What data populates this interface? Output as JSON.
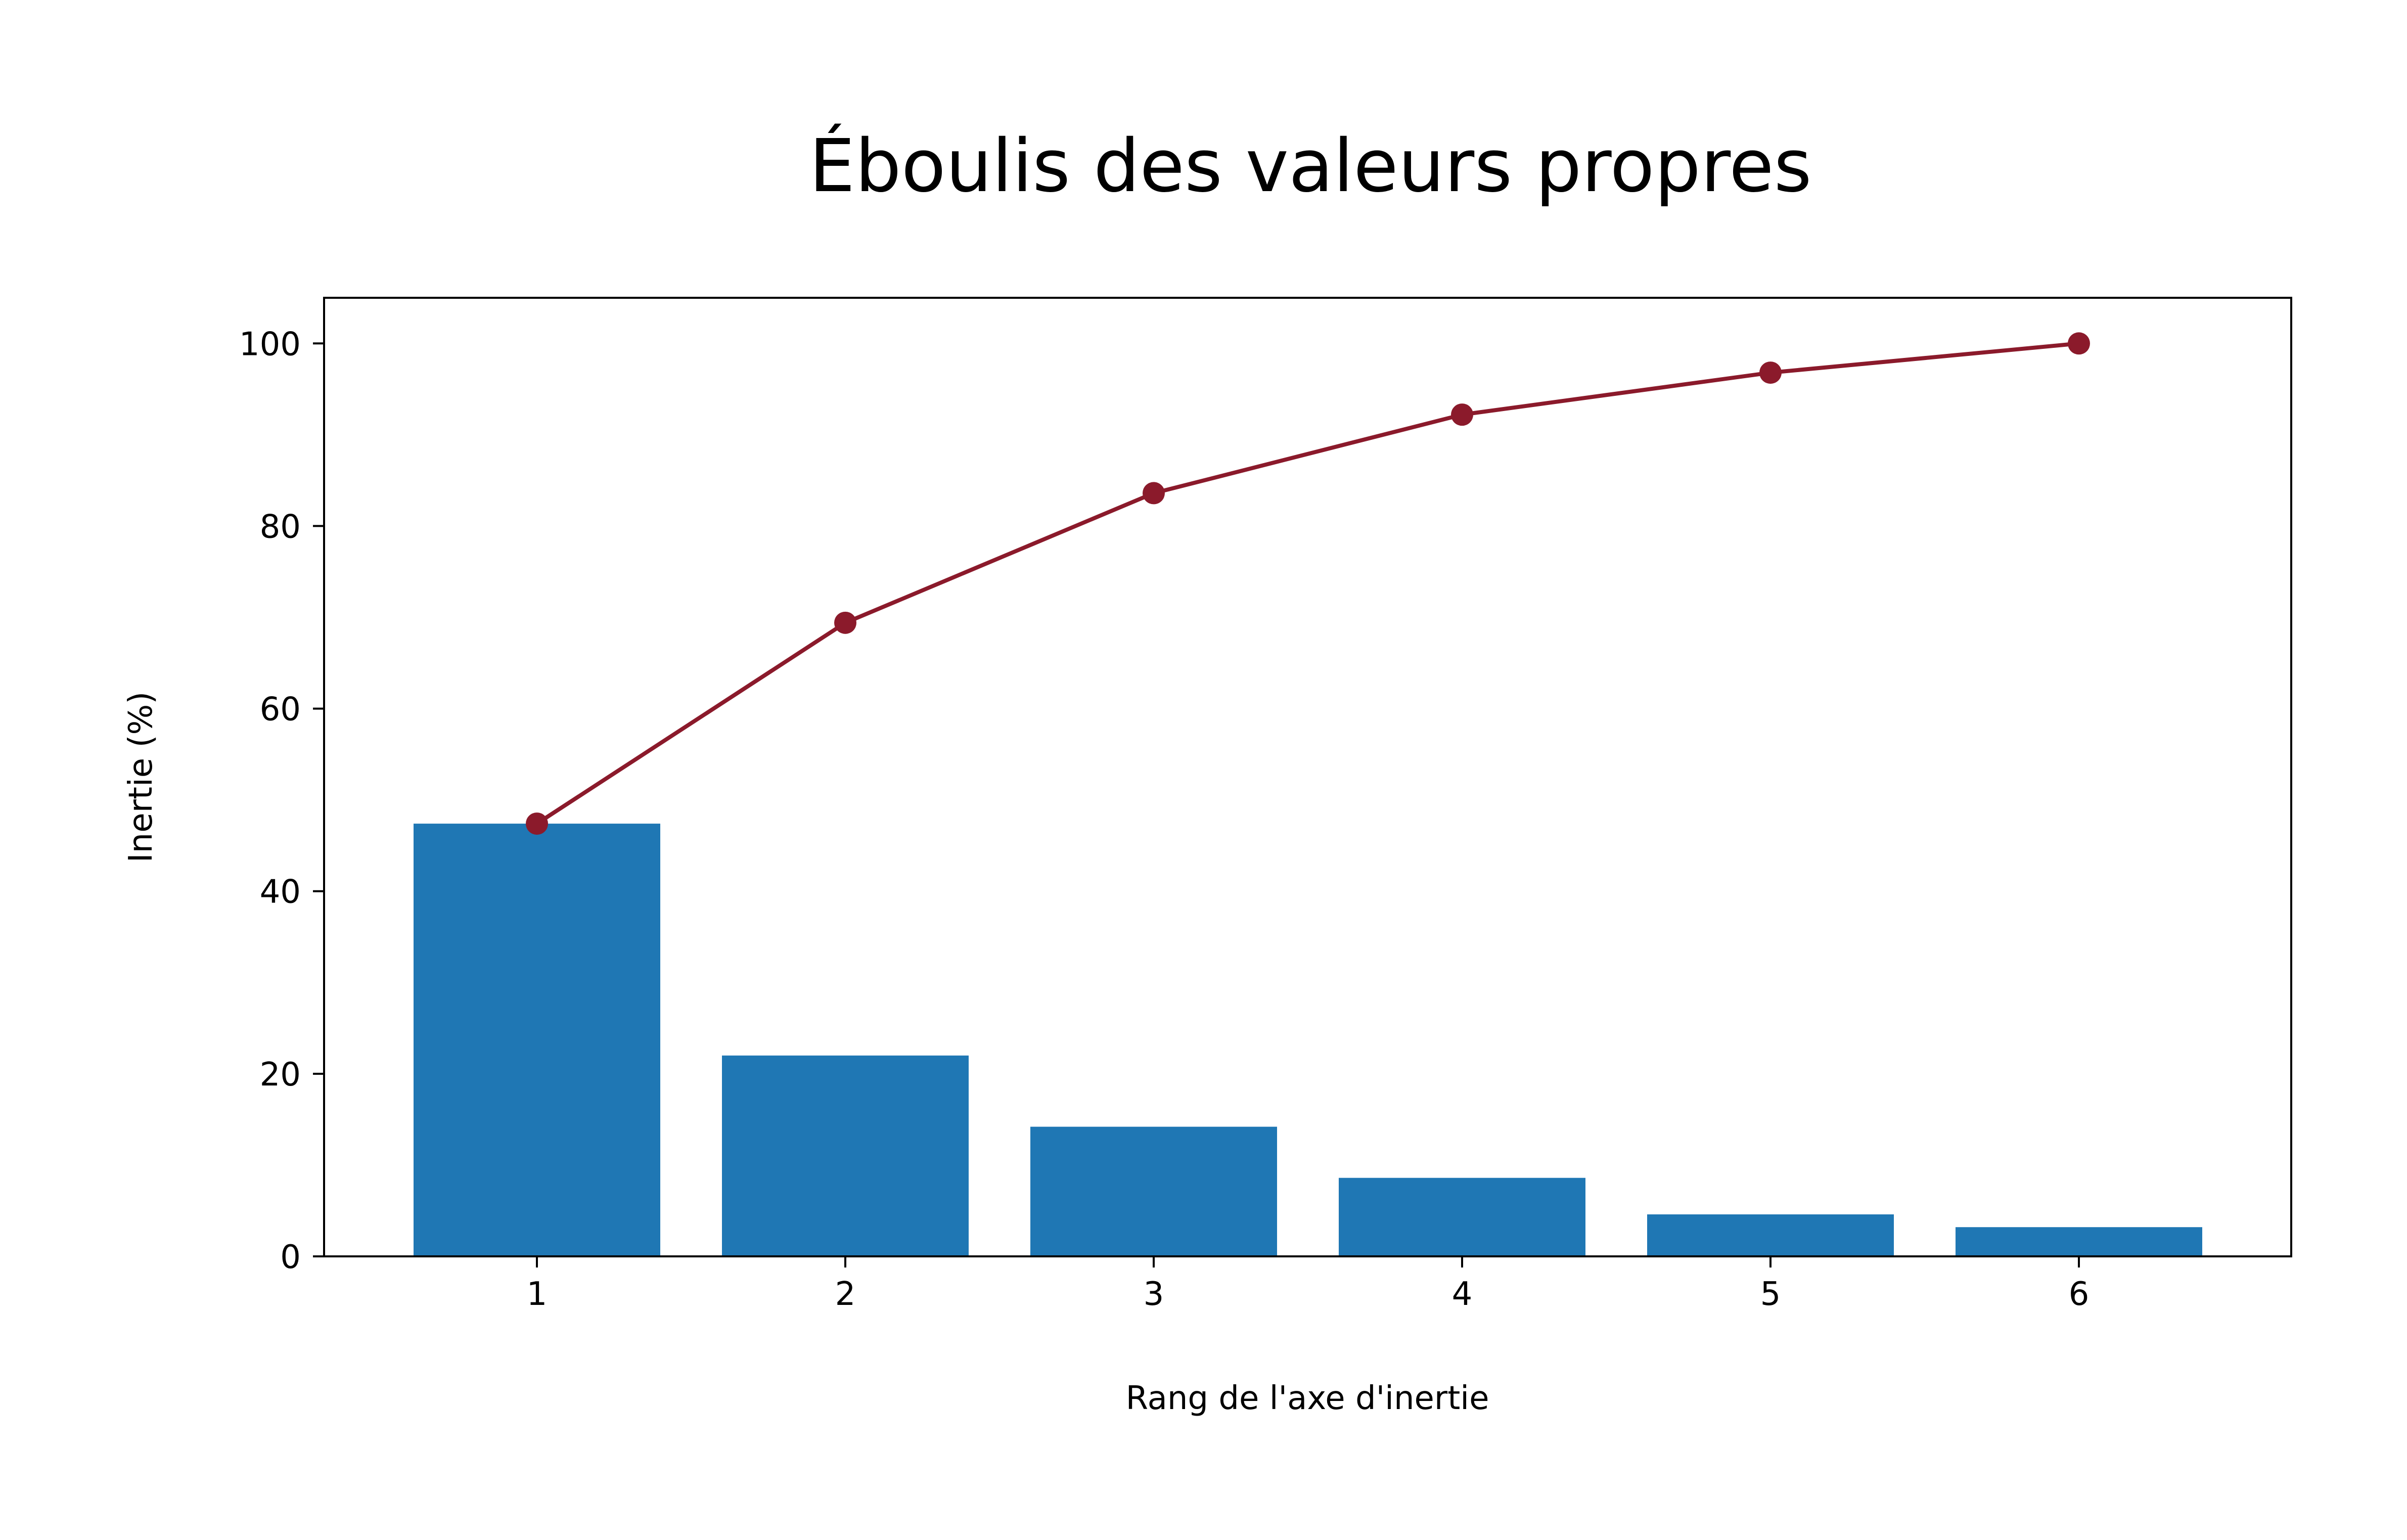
{
  "colors": {
    "bar": "#1f77b4",
    "cumulative_line": "#8b1a2b",
    "axes": "#000000",
    "background": "#ffffff"
  },
  "chart_data": {
    "type": "bar",
    "title": "Éboulis des valeurs propres",
    "xlabel": "Rang de l'axe d'inertie",
    "ylabel": "Inertie (%)",
    "categories": [
      "1",
      "2",
      "3",
      "4",
      "5",
      "6"
    ],
    "ylim": [
      0,
      105
    ],
    "yticks": [
      0,
      20,
      40,
      60,
      80,
      100
    ],
    "ytick_labels": [
      "0",
      "20",
      "40",
      "60",
      "80",
      "100"
    ],
    "grid": false,
    "series": [
      {
        "type": "bar",
        "values": [
          47.4,
          22.0,
          14.2,
          8.6,
          4.6,
          3.2
        ]
      },
      {
        "type": "line",
        "marker": "circle",
        "values": [
          47.4,
          69.4,
          83.6,
          92.2,
          96.8,
          100.0
        ]
      }
    ]
  }
}
